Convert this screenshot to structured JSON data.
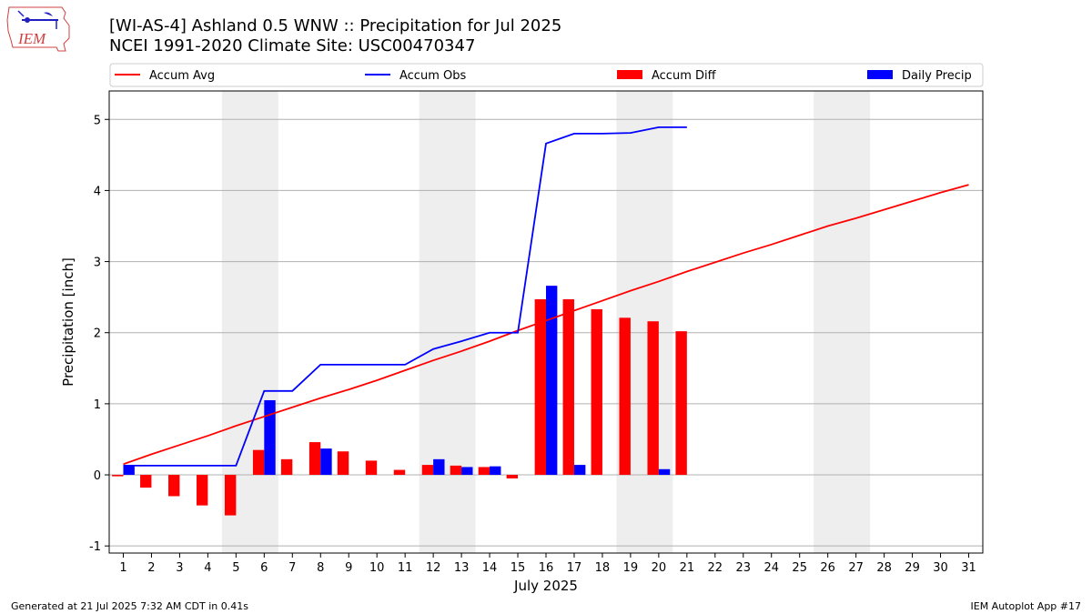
{
  "header": {
    "title_line1": "[WI-AS-4] Ashland 0.5 WNW :: Precipitation for Jul 2025",
    "title_line2": "NCEI 1991-2020 Climate Site: USC00470347"
  },
  "logo": {
    "text": "IEM",
    "icon": "iowa-state-outline-logo"
  },
  "footer": {
    "left": "Generated at 21 Jul 2025 7:32 AM CDT in 0.41s",
    "right": "IEM Autoplot App #17"
  },
  "colors": {
    "accum_avg": "#ff0000",
    "accum_obs": "#0000ff",
    "accum_diff": "#ff0000",
    "daily_precip": "#0000ff",
    "weekend_band": "#eeeeee",
    "grid": "#b0b0b0"
  },
  "chart_data": {
    "type": "bar",
    "title": "",
    "xlabel": "July 2025",
    "ylabel": "Precipitation [inch]",
    "xlim": [
      0.5,
      31.5
    ],
    "ylim": [
      -1.1,
      5.4
    ],
    "yticks": [
      -1,
      0,
      1,
      2,
      3,
      4,
      5
    ],
    "grid": "horizontal",
    "legend": {
      "position": "top",
      "entries": [
        {
          "label": "Accum Avg",
          "kind": "line",
          "series": "accum_avg"
        },
        {
          "label": "Accum Obs",
          "kind": "line",
          "series": "accum_obs"
        },
        {
          "label": "Accum Diff",
          "kind": "bar",
          "series": "accum_diff"
        },
        {
          "label": "Daily Precip",
          "kind": "bar",
          "series": "daily_precip"
        }
      ]
    },
    "weekend_bands": [
      [
        4.5,
        6.5
      ],
      [
        11.5,
        13.5
      ],
      [
        18.5,
        20.5
      ],
      [
        25.5,
        27.5
      ]
    ],
    "days": [
      1,
      2,
      3,
      4,
      5,
      6,
      7,
      8,
      9,
      10,
      11,
      12,
      13,
      14,
      15,
      16,
      17,
      18,
      19,
      20,
      21,
      22,
      23,
      24,
      25,
      26,
      27,
      28,
      29,
      30,
      31
    ],
    "series": [
      {
        "name": "Accum Avg",
        "type": "line",
        "values": [
          0.15,
          0.29,
          0.42,
          0.55,
          0.69,
          0.82,
          0.95,
          1.08,
          1.2,
          1.33,
          1.47,
          1.61,
          1.74,
          1.88,
          2.03,
          2.17,
          2.31,
          2.45,
          2.59,
          2.72,
          2.86,
          2.99,
          3.12,
          3.24,
          3.37,
          3.5,
          3.61,
          3.73,
          3.85,
          3.97,
          4.08
        ]
      },
      {
        "name": "Accum Obs",
        "type": "line",
        "values": [
          0.13,
          0.13,
          0.13,
          0.13,
          0.13,
          1.18,
          1.18,
          1.55,
          1.55,
          1.55,
          1.55,
          1.77,
          1.88,
          2.0,
          2.0,
          4.66,
          4.8,
          4.8,
          4.81,
          4.89,
          4.89
        ]
      },
      {
        "name": "Accum Diff",
        "type": "bar",
        "values": [
          -0.02,
          -0.18,
          -0.3,
          -0.43,
          -0.57,
          0.35,
          0.22,
          0.46,
          0.33,
          0.2,
          0.07,
          0.14,
          0.13,
          0.11,
          -0.05,
          2.47,
          2.47,
          2.33,
          2.21,
          2.16,
          2.02
        ]
      },
      {
        "name": "Daily Precip",
        "type": "bar",
        "values": [
          0.13,
          0,
          0,
          0,
          0,
          1.05,
          0,
          0.37,
          0,
          0,
          0,
          0.22,
          0.11,
          0.12,
          0,
          2.66,
          0.14,
          0,
          0,
          0.08,
          0
        ]
      }
    ]
  }
}
